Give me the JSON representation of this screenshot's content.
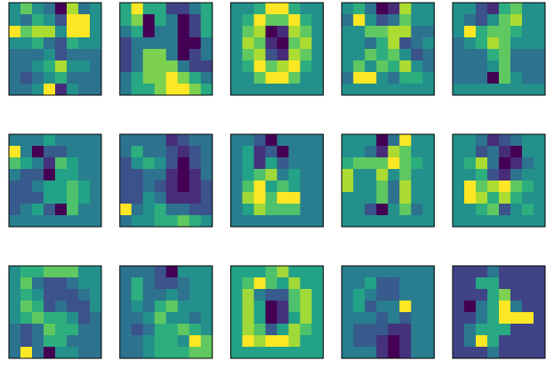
{
  "chart_data": {
    "type": "heatmap",
    "colormap": "viridis",
    "panels": [
      [
        [
          8,
          12,
          8,
          6,
          0,
          14,
          6,
          8
        ],
        [
          8,
          6,
          10,
          8,
          4,
          16,
          16,
          8
        ],
        [
          16,
          12,
          14,
          14,
          8,
          16,
          16,
          8
        ],
        [
          8,
          8,
          10,
          6,
          4,
          10,
          8,
          8
        ],
        [
          6,
          6,
          6,
          8,
          4,
          6,
          6,
          6
        ],
        [
          6,
          6,
          8,
          10,
          14,
          8,
          8,
          6
        ],
        [
          6,
          4,
          6,
          8,
          10,
          6,
          6,
          6
        ],
        [
          6,
          6,
          8,
          16,
          2,
          8,
          6,
          6
        ]
      ],
      [
        [
          8,
          12,
          8,
          8,
          4,
          4,
          6,
          8
        ],
        [
          8,
          10,
          2,
          8,
          6,
          2,
          4,
          8
        ],
        [
          6,
          8,
          2,
          6,
          6,
          2,
          4,
          8
        ],
        [
          4,
          6,
          6,
          6,
          6,
          2,
          2,
          6
        ],
        [
          4,
          6,
          10,
          10,
          6,
          2,
          4,
          6
        ],
        [
          4,
          6,
          10,
          10,
          10,
          6,
          4,
          4
        ],
        [
          6,
          8,
          10,
          10,
          12,
          10,
          8,
          6
        ],
        [
          6,
          8,
          8,
          10,
          12,
          12,
          10,
          8
        ]
      ],
      [
        [
          8,
          8,
          10,
          16,
          16,
          10,
          8,
          8
        ],
        [
          8,
          10,
          16,
          12,
          12,
          16,
          10,
          8
        ],
        [
          8,
          12,
          14,
          0,
          2,
          14,
          12,
          8
        ],
        [
          8,
          14,
          12,
          2,
          0,
          12,
          14,
          8
        ],
        [
          8,
          12,
          14,
          4,
          2,
          14,
          12,
          8
        ],
        [
          8,
          10,
          16,
          12,
          14,
          16,
          10,
          8
        ],
        [
          8,
          8,
          12,
          16,
          16,
          12,
          8,
          8
        ],
        [
          8,
          8,
          8,
          8,
          8,
          8,
          8,
          8
        ]
      ],
      [
        [
          8,
          10,
          6,
          0,
          2,
          14,
          8,
          8
        ],
        [
          6,
          16,
          8,
          4,
          6,
          12,
          8,
          8
        ],
        [
          8,
          8,
          12,
          12,
          14,
          14,
          6,
          6
        ],
        [
          8,
          8,
          6,
          10,
          14,
          4,
          6,
          8
        ],
        [
          8,
          8,
          12,
          10,
          12,
          8,
          4,
          6
        ],
        [
          8,
          12,
          8,
          12,
          10,
          14,
          8,
          6
        ],
        [
          6,
          16,
          16,
          8,
          6,
          10,
          10,
          8
        ],
        [
          8,
          8,
          8,
          8,
          8,
          8,
          8,
          8
        ]
      ],
      [
        [
          8,
          8,
          4,
          2,
          10,
          12,
          8,
          8
        ],
        [
          8,
          6,
          4,
          8,
          12,
          14,
          8,
          8
        ],
        [
          8,
          16,
          10,
          12,
          12,
          10,
          8,
          8
        ],
        [
          6,
          8,
          10,
          14,
          12,
          8,
          8,
          8
        ],
        [
          6,
          6,
          6,
          10,
          12,
          6,
          6,
          6
        ],
        [
          6,
          6,
          6,
          8,
          12,
          6,
          6,
          6
        ],
        [
          6,
          6,
          6,
          0,
          12,
          8,
          6,
          6
        ],
        [
          8,
          8,
          8,
          8,
          8,
          8,
          8,
          8
        ]
      ],
      [
        [
          8,
          8,
          8,
          10,
          8,
          8,
          8,
          8
        ],
        [
          16,
          8,
          2,
          6,
          6,
          8,
          8,
          8
        ],
        [
          12,
          10,
          8,
          4,
          12,
          10,
          8,
          8
        ],
        [
          8,
          6,
          6,
          2,
          10,
          10,
          8,
          8
        ],
        [
          6,
          6,
          8,
          10,
          10,
          12,
          10,
          8
        ],
        [
          6,
          6,
          6,
          10,
          10,
          12,
          10,
          8
        ],
        [
          6,
          8,
          10,
          6,
          2,
          12,
          8,
          8
        ],
        [
          8,
          8,
          8,
          8,
          8,
          8,
          8,
          8
        ]
      ],
      [
        [
          6,
          6,
          6,
          6,
          2,
          4,
          6,
          6
        ],
        [
          6,
          10,
          6,
          6,
          4,
          2,
          4,
          6
        ],
        [
          4,
          8,
          10,
          8,
          4,
          0,
          4,
          6
        ],
        [
          4,
          4,
          6,
          6,
          2,
          0,
          2,
          6
        ],
        [
          4,
          4,
          6,
          4,
          2,
          0,
          2,
          4
        ],
        [
          4,
          4,
          8,
          6,
          2,
          2,
          2,
          4
        ],
        [
          16,
          6,
          8,
          10,
          6,
          6,
          4,
          4
        ],
        [
          6,
          8,
          8,
          10,
          10,
          12,
          10,
          8
        ]
      ],
      [
        [
          8,
          8,
          6,
          2,
          8,
          8,
          8,
          8
        ],
        [
          8,
          10,
          4,
          6,
          2,
          8,
          8,
          8
        ],
        [
          8,
          10,
          4,
          10,
          6,
          8,
          8,
          8
        ],
        [
          8,
          10,
          12,
          14,
          8,
          10,
          8,
          8
        ],
        [
          8,
          12,
          16,
          10,
          12,
          10,
          8,
          8
        ],
        [
          8,
          14,
          16,
          12,
          16,
          16,
          8,
          8
        ],
        [
          8,
          10,
          14,
          12,
          12,
          12,
          8,
          8
        ],
        [
          8,
          8,
          8,
          8,
          8,
          8,
          8,
          8
        ]
      ],
      [
        [
          8,
          8,
          8,
          0,
          6,
          16,
          8,
          8
        ],
        [
          8,
          8,
          6,
          2,
          14,
          12,
          8,
          8
        ],
        [
          10,
          12,
          12,
          12,
          16,
          12,
          10,
          8
        ],
        [
          14,
          8,
          8,
          14,
          8,
          12,
          8,
          8
        ],
        [
          14,
          8,
          8,
          12,
          6,
          14,
          8,
          8
        ],
        [
          8,
          8,
          8,
          12,
          6,
          14,
          8,
          8
        ],
        [
          8,
          8,
          4,
          0,
          8,
          12,
          6,
          8
        ],
        [
          8,
          8,
          8,
          8,
          8,
          8,
          8,
          8
        ]
      ],
      [
        [
          8,
          8,
          6,
          2,
          4,
          6,
          8,
          8
        ],
        [
          8,
          8,
          4,
          6,
          2,
          0,
          8,
          8
        ],
        [
          8,
          10,
          14,
          6,
          0,
          2,
          6,
          8
        ],
        [
          8,
          8,
          10,
          4,
          2,
          6,
          8,
          8
        ],
        [
          8,
          16,
          12,
          14,
          16,
          12,
          10,
          8
        ],
        [
          8,
          16,
          14,
          10,
          14,
          10,
          8,
          8
        ],
        [
          8,
          8,
          10,
          12,
          4,
          8,
          10,
          8
        ],
        [
          8,
          8,
          8,
          8,
          8,
          8,
          8,
          8
        ]
      ],
      [
        [
          8,
          10,
          10,
          12,
          12,
          12,
          8,
          8
        ],
        [
          8,
          12,
          6,
          4,
          4,
          6,
          8,
          8
        ],
        [
          8,
          10,
          8,
          4,
          4,
          4,
          6,
          8
        ],
        [
          8,
          12,
          10,
          4,
          6,
          4,
          4,
          8
        ],
        [
          8,
          10,
          12,
          10,
          10,
          8,
          4,
          6
        ],
        [
          6,
          4,
          6,
          12,
          10,
          10,
          6,
          6
        ],
        [
          6,
          4,
          6,
          10,
          10,
          6,
          6,
          6
        ],
        [
          6,
          16,
          6,
          0,
          8,
          8,
          6,
          6
        ]
      ],
      [
        [
          6,
          6,
          6,
          4,
          0,
          8,
          8,
          8
        ],
        [
          6,
          10,
          6,
          4,
          4,
          6,
          8,
          8
        ],
        [
          6,
          10,
          6,
          6,
          8,
          6,
          8,
          8
        ],
        [
          6,
          8,
          6,
          10,
          12,
          8,
          8,
          8
        ],
        [
          6,
          6,
          8,
          12,
          8,
          8,
          6,
          8
        ],
        [
          6,
          4,
          6,
          10,
          10,
          12,
          10,
          8
        ],
        [
          6,
          6,
          8,
          10,
          10,
          8,
          16,
          12
        ],
        [
          6,
          6,
          8,
          10,
          10,
          10,
          12,
          12
        ]
      ],
      [
        [
          8,
          8,
          8,
          10,
          12,
          8,
          8,
          8
        ],
        [
          8,
          10,
          14,
          10,
          8,
          12,
          8,
          8
        ],
        [
          8,
          12,
          6,
          4,
          4,
          10,
          12,
          8
        ],
        [
          8,
          12,
          8,
          0,
          2,
          10,
          12,
          8
        ],
        [
          8,
          12,
          8,
          0,
          2,
          8,
          12,
          8
        ],
        [
          8,
          12,
          10,
          4,
          8,
          12,
          10,
          8
        ],
        [
          8,
          14,
          12,
          14,
          14,
          12,
          8,
          8
        ],
        [
          8,
          8,
          8,
          8,
          8,
          8,
          8,
          8
        ]
      ],
      [
        [
          8,
          8,
          8,
          8,
          8,
          8,
          8,
          8
        ],
        [
          8,
          8,
          10,
          6,
          6,
          8,
          8,
          8
        ],
        [
          8,
          10,
          8,
          6,
          6,
          8,
          8,
          8
        ],
        [
          8,
          10,
          6,
          8,
          8,
          16,
          8,
          8
        ],
        [
          8,
          8,
          8,
          6,
          8,
          6,
          8,
          8
        ],
        [
          8,
          6,
          6,
          6,
          4,
          4,
          8,
          8
        ],
        [
          8,
          6,
          6,
          4,
          2,
          4,
          8,
          8
        ],
        [
          8,
          8,
          8,
          4,
          2,
          4,
          8,
          8
        ]
      ],
      [
        [
          8,
          8,
          8,
          10,
          8,
          8,
          8,
          8
        ],
        [
          8,
          8,
          12,
          12,
          8,
          8,
          8,
          8
        ],
        [
          8,
          8,
          8,
          12,
          14,
          8,
          8,
          8
        ],
        [
          8,
          6,
          10,
          12,
          16,
          10,
          8,
          8
        ],
        [
          8,
          8,
          10,
          12,
          16,
          16,
          16,
          8
        ],
        [
          8,
          10,
          12,
          12,
          12,
          8,
          8,
          8
        ],
        [
          8,
          10,
          16,
          12,
          8,
          8,
          8,
          8
        ],
        [
          8,
          8,
          8,
          10,
          8,
          8,
          8,
          8
        ]
      ]
    ]
  }
}
